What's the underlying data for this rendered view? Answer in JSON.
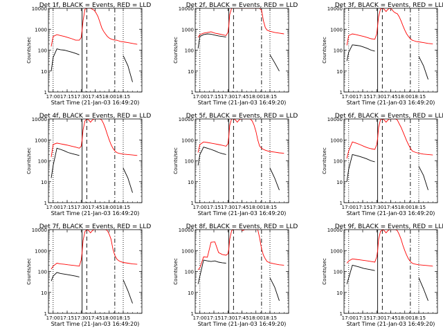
{
  "chart_data": {
    "type": "line",
    "layout": "3x3 grid",
    "y_scale": "log",
    "ylim": [
      1,
      10000
    ],
    "y_ticks": [
      1,
      10,
      100,
      1000,
      10000
    ],
    "y_tick_labels": [
      "1",
      "10",
      "100",
      "1000",
      "10000"
    ],
    "ylabel": "Counts/sec",
    "xlim_min": [
      -5,
      95
    ],
    "x_unit": "minutes after 17:00 UT",
    "x_ticks_min": [
      0,
      15,
      30,
      45,
      60,
      75
    ],
    "x_tick_labels": [
      "17:00",
      "17:15",
      "17:30",
      "17:45",
      "18:00",
      "18:15"
    ],
    "xlabel": "Start Time (21-Jan-03 16:49:20)",
    "legend": "BLACK = Events, RED = LLD",
    "series_colors": {
      "events": "#000000",
      "lld": "#ff0000"
    },
    "markers": [
      {
        "x": 0,
        "style": "dotted"
      },
      {
        "x": 31,
        "style": "solid"
      },
      {
        "x": 36,
        "style": "dashed"
      },
      {
        "x": 66,
        "style": "dashdot"
      },
      {
        "x": 75,
        "style": "dotted"
      }
    ],
    "x": [
      -5,
      -2,
      0,
      4,
      8,
      12,
      16,
      20,
      24,
      28,
      30,
      31,
      32,
      34,
      36,
      38,
      40,
      42,
      44,
      46,
      48,
      50,
      52,
      54,
      56,
      58,
      60,
      62,
      64,
      66,
      68,
      70,
      72,
      75,
      80,
      85,
      90,
      95
    ],
    "panels": [
      {
        "title": "Det 1f, BLACK = Events, RED = LLD",
        "events": [
          null,
          10,
          45,
          115,
          105,
          100,
          90,
          80,
          70,
          60,
          null,
          null,
          null,
          null,
          null,
          null,
          null,
          null,
          null,
          null,
          null,
          null,
          null,
          null,
          null,
          null,
          null,
          null,
          null,
          null,
          null,
          null,
          null,
          55,
          18,
          3,
          null,
          null
        ],
        "lld": [
          null,
          150,
          450,
          550,
          500,
          450,
          400,
          350,
          300,
          300,
          400,
          900,
          2500,
          9000,
          12000,
          12000,
          10000,
          9000,
          8000,
          6000,
          4000,
          2200,
          1200,
          800,
          600,
          450,
          380,
          340,
          320,
          300,
          300,
          280,
          260,
          250,
          230,
          210,
          190,
          null
        ]
      },
      {
        "title": "Det 2f, BLACK = Events, RED = LLD",
        "events": [
          null,
          120,
          450,
          550,
          600,
          580,
          520,
          480,
          450,
          420,
          null,
          null,
          null,
          null,
          null,
          null,
          null,
          null,
          null,
          null,
          null,
          null,
          null,
          null,
          null,
          null,
          null,
          null,
          null,
          null,
          null,
          null,
          null,
          60,
          25,
          10,
          null,
          null
        ],
        "lld": [
          null,
          400,
          550,
          650,
          700,
          750,
          650,
          600,
          550,
          500,
          700,
          1500,
          5000,
          12000,
          12000,
          12000,
          12000,
          12000,
          12000,
          12000,
          12000,
          12000,
          12000,
          12000,
          12000,
          12000,
          12000,
          12000,
          12000,
          8000,
          2500,
          1200,
          900,
          800,
          700,
          650,
          600,
          null
        ]
      },
      {
        "title": "Det 3f, BLACK = Events, RED = LLD",
        "events": [
          null,
          30,
          80,
          180,
          170,
          160,
          140,
          120,
          100,
          90,
          null,
          null,
          null,
          null,
          null,
          null,
          null,
          null,
          null,
          null,
          null,
          null,
          null,
          null,
          null,
          null,
          null,
          null,
          null,
          null,
          null,
          null,
          null,
          50,
          18,
          4,
          null,
          null
        ],
        "lld": [
          null,
          170,
          500,
          600,
          550,
          500,
          450,
          400,
          350,
          330,
          600,
          1500,
          4000,
          9000,
          11000,
          9000,
          7000,
          9000,
          11000,
          9000,
          7000,
          6000,
          5500,
          4000,
          2500,
          1500,
          900,
          600,
          450,
          350,
          300,
          280,
          260,
          250,
          230,
          210,
          200,
          null
        ]
      },
      {
        "title": "Det 4f, BLACK = Events, RED = LLD",
        "events": [
          null,
          15,
          60,
          400,
          350,
          300,
          250,
          220,
          200,
          180,
          null,
          null,
          null,
          null,
          null,
          null,
          null,
          null,
          null,
          null,
          null,
          null,
          null,
          null,
          null,
          null,
          null,
          null,
          null,
          null,
          null,
          null,
          null,
          45,
          15,
          3,
          null,
          null
        ],
        "lld": [
          null,
          150,
          600,
          700,
          650,
          600,
          550,
          500,
          450,
          400,
          500,
          1000,
          3000,
          8000,
          11000,
          9000,
          7000,
          9000,
          12000,
          12000,
          12000,
          11000,
          9000,
          6000,
          3500,
          1800,
          1000,
          600,
          400,
          300,
          250,
          230,
          220,
          210,
          200,
          190,
          180,
          null
        ]
      },
      {
        "title": "Det 5f, BLACK = Events, RED = LLD",
        "events": [
          null,
          60,
          200,
          450,
          400,
          350,
          300,
          250,
          220,
          200,
          null,
          null,
          null,
          null,
          null,
          null,
          null,
          null,
          null,
          null,
          null,
          null,
          null,
          null,
          null,
          null,
          null,
          null,
          null,
          null,
          null,
          null,
          null,
          45,
          15,
          4,
          null,
          null
        ],
        "lld": [
          null,
          250,
          600,
          800,
          750,
          700,
          650,
          600,
          550,
          500,
          650,
          1500,
          5000,
          11000,
          12000,
          9000,
          7000,
          9000,
          12000,
          12000,
          12000,
          12000,
          11000,
          10000,
          8000,
          5000,
          2500,
          1000,
          500,
          400,
          350,
          320,
          300,
          280,
          260,
          240,
          230,
          null
        ]
      },
      {
        "title": "Det 6f, BLACK = Events, RED = LLD",
        "events": [
          null,
          10,
          40,
          200,
          180,
          160,
          140,
          120,
          100,
          90,
          null,
          null,
          null,
          null,
          null,
          null,
          null,
          null,
          null,
          null,
          null,
          null,
          null,
          null,
          null,
          null,
          null,
          null,
          null,
          null,
          null,
          null,
          null,
          55,
          20,
          4,
          null,
          null
        ],
        "lld": [
          null,
          130,
          300,
          800,
          700,
          600,
          500,
          420,
          380,
          350,
          600,
          1200,
          4000,
          9000,
          11000,
          9000,
          7000,
          9000,
          12000,
          12000,
          12000,
          11000,
          9000,
          6000,
          4000,
          2500,
          1500,
          900,
          600,
          400,
          300,
          270,
          250,
          230,
          210,
          200,
          190,
          null
        ]
      },
      {
        "title": "Det 7f, BLACK = Events, RED = LLD",
        "events": [
          null,
          35,
          60,
          90,
          80,
          75,
          70,
          65,
          60,
          55,
          null,
          null,
          null,
          null,
          null,
          null,
          null,
          null,
          null,
          null,
          null,
          null,
          null,
          null,
          null,
          null,
          null,
          null,
          null,
          null,
          null,
          null,
          null,
          40,
          12,
          3,
          null,
          null
        ],
        "lld": [
          null,
          130,
          180,
          250,
          230,
          220,
          210,
          200,
          190,
          180,
          350,
          800,
          3000,
          8000,
          11000,
          9000,
          7000,
          9000,
          12000,
          12000,
          12000,
          12000,
          12000,
          12000,
          11000,
          9000,
          6000,
          3500,
          1200,
          600,
          400,
          330,
          300,
          270,
          250,
          230,
          220,
          null
        ]
      },
      {
        "title": "Det 8f, BLACK = Events, RED = LLD",
        "events": [
          null,
          25,
          60,
          350,
          320,
          300,
          320,
          280,
          260,
          250,
          null,
          null,
          null,
          null,
          null,
          null,
          null,
          null,
          null,
          null,
          null,
          null,
          null,
          null,
          null,
          null,
          null,
          null,
          null,
          null,
          null,
          null,
          null,
          50,
          18,
          4,
          null,
          null
        ],
        "lld": [
          null,
          120,
          150,
          500,
          480,
          2500,
          2600,
          800,
          650,
          600,
          700,
          1200,
          3500,
          9000,
          12000,
          12000,
          12000,
          12000,
          11000,
          9000,
          11000,
          12000,
          12000,
          12000,
          12000,
          12000,
          12000,
          10000,
          4000,
          1200,
          600,
          400,
          300,
          260,
          230,
          210,
          200,
          null
        ]
      },
      {
        "title": "Det 9f, BLACK = Events, RED = LLD",
        "events": [
          null,
          25,
          50,
          200,
          180,
          160,
          140,
          130,
          120,
          110,
          null,
          null,
          null,
          null,
          null,
          null,
          null,
          null,
          null,
          null,
          null,
          null,
          null,
          null,
          null,
          null,
          null,
          null,
          null,
          null,
          null,
          null,
          null,
          50,
          15,
          4,
          null,
          null
        ],
        "lld": [
          null,
          250,
          320,
          400,
          380,
          360,
          340,
          320,
          300,
          280,
          500,
          1000,
          3500,
          8000,
          11000,
          9000,
          7000,
          9000,
          12000,
          12000,
          12000,
          11000,
          9000,
          6000,
          3500,
          1800,
          1000,
          600,
          400,
          300,
          250,
          230,
          220,
          210,
          200,
          190,
          180,
          null
        ]
      }
    ]
  }
}
